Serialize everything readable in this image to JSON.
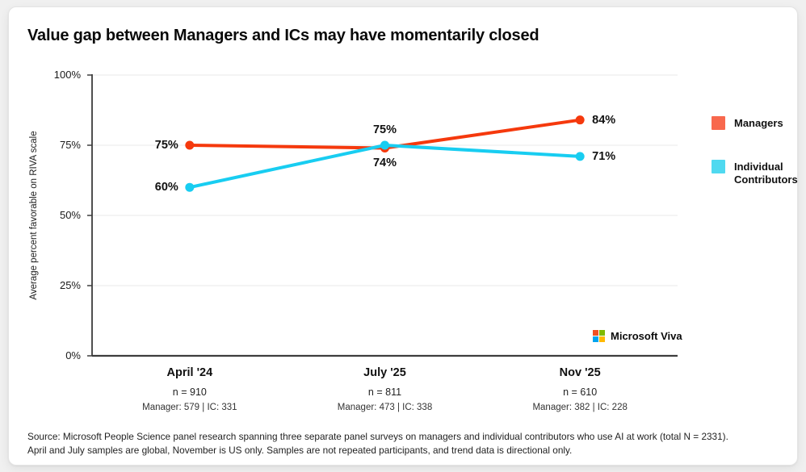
{
  "page": {
    "background": "#f0f0f0",
    "card_background": "#ffffff"
  },
  "title": "Value gap between Managers and ICs may have momentarily closed",
  "chart_data": {
    "type": "line",
    "title": "Value gap between Managers and ICs may have momentarily closed",
    "ylabel": "Average percent favorable on RIVA scale",
    "ylim": [
      0,
      100
    ],
    "yticks": [
      0,
      25,
      50,
      75,
      100
    ],
    "ytick_labels": [
      "0%",
      "25%",
      "50%",
      "75%",
      "100%"
    ],
    "grid": true,
    "legend_position": "right",
    "categories": [
      "April '24",
      "July '25",
      "Nov '25"
    ],
    "category_sublabels": [
      {
        "n": "n = 910",
        "breakdown": "Manager: 579 | IC: 331"
      },
      {
        "n": "n = 811",
        "breakdown": "Manager: 473 | IC: 338"
      },
      {
        "n": "n = 610",
        "breakdown": "Manager: 382 | IC: 228"
      }
    ],
    "series": [
      {
        "name": "Managers",
        "color": "#F5390D",
        "values": [
          75,
          74,
          84
        ],
        "point_labels": [
          "75%",
          "74%",
          "84%"
        ],
        "label_placement": [
          "left",
          "below",
          "right"
        ]
      },
      {
        "name": "Individual Contributors",
        "color": "#18CDF1",
        "values": [
          60,
          75,
          71
        ],
        "point_labels": [
          "60%",
          "75%",
          "71%"
        ],
        "label_placement": [
          "left",
          "above",
          "right"
        ]
      }
    ]
  },
  "legend": {
    "items": [
      {
        "label": "Managers",
        "color": "#F8684D"
      },
      {
        "label": "Individual Contributors",
        "color": "#4FD9F0"
      }
    ]
  },
  "branding": {
    "text": "Microsoft Viva",
    "logo_colors": [
      "#F25022",
      "#7FBA00",
      "#00A4EF",
      "#FFB900"
    ]
  },
  "source": {
    "line1": "Source: Microsoft People Science panel research spanning three separate panel surveys on managers and individual contributors who use AI at work (total N = 2331).",
    "line2": "April and July samples are global, November is US only. Samples are not repeated participants, and trend data is directional only."
  }
}
